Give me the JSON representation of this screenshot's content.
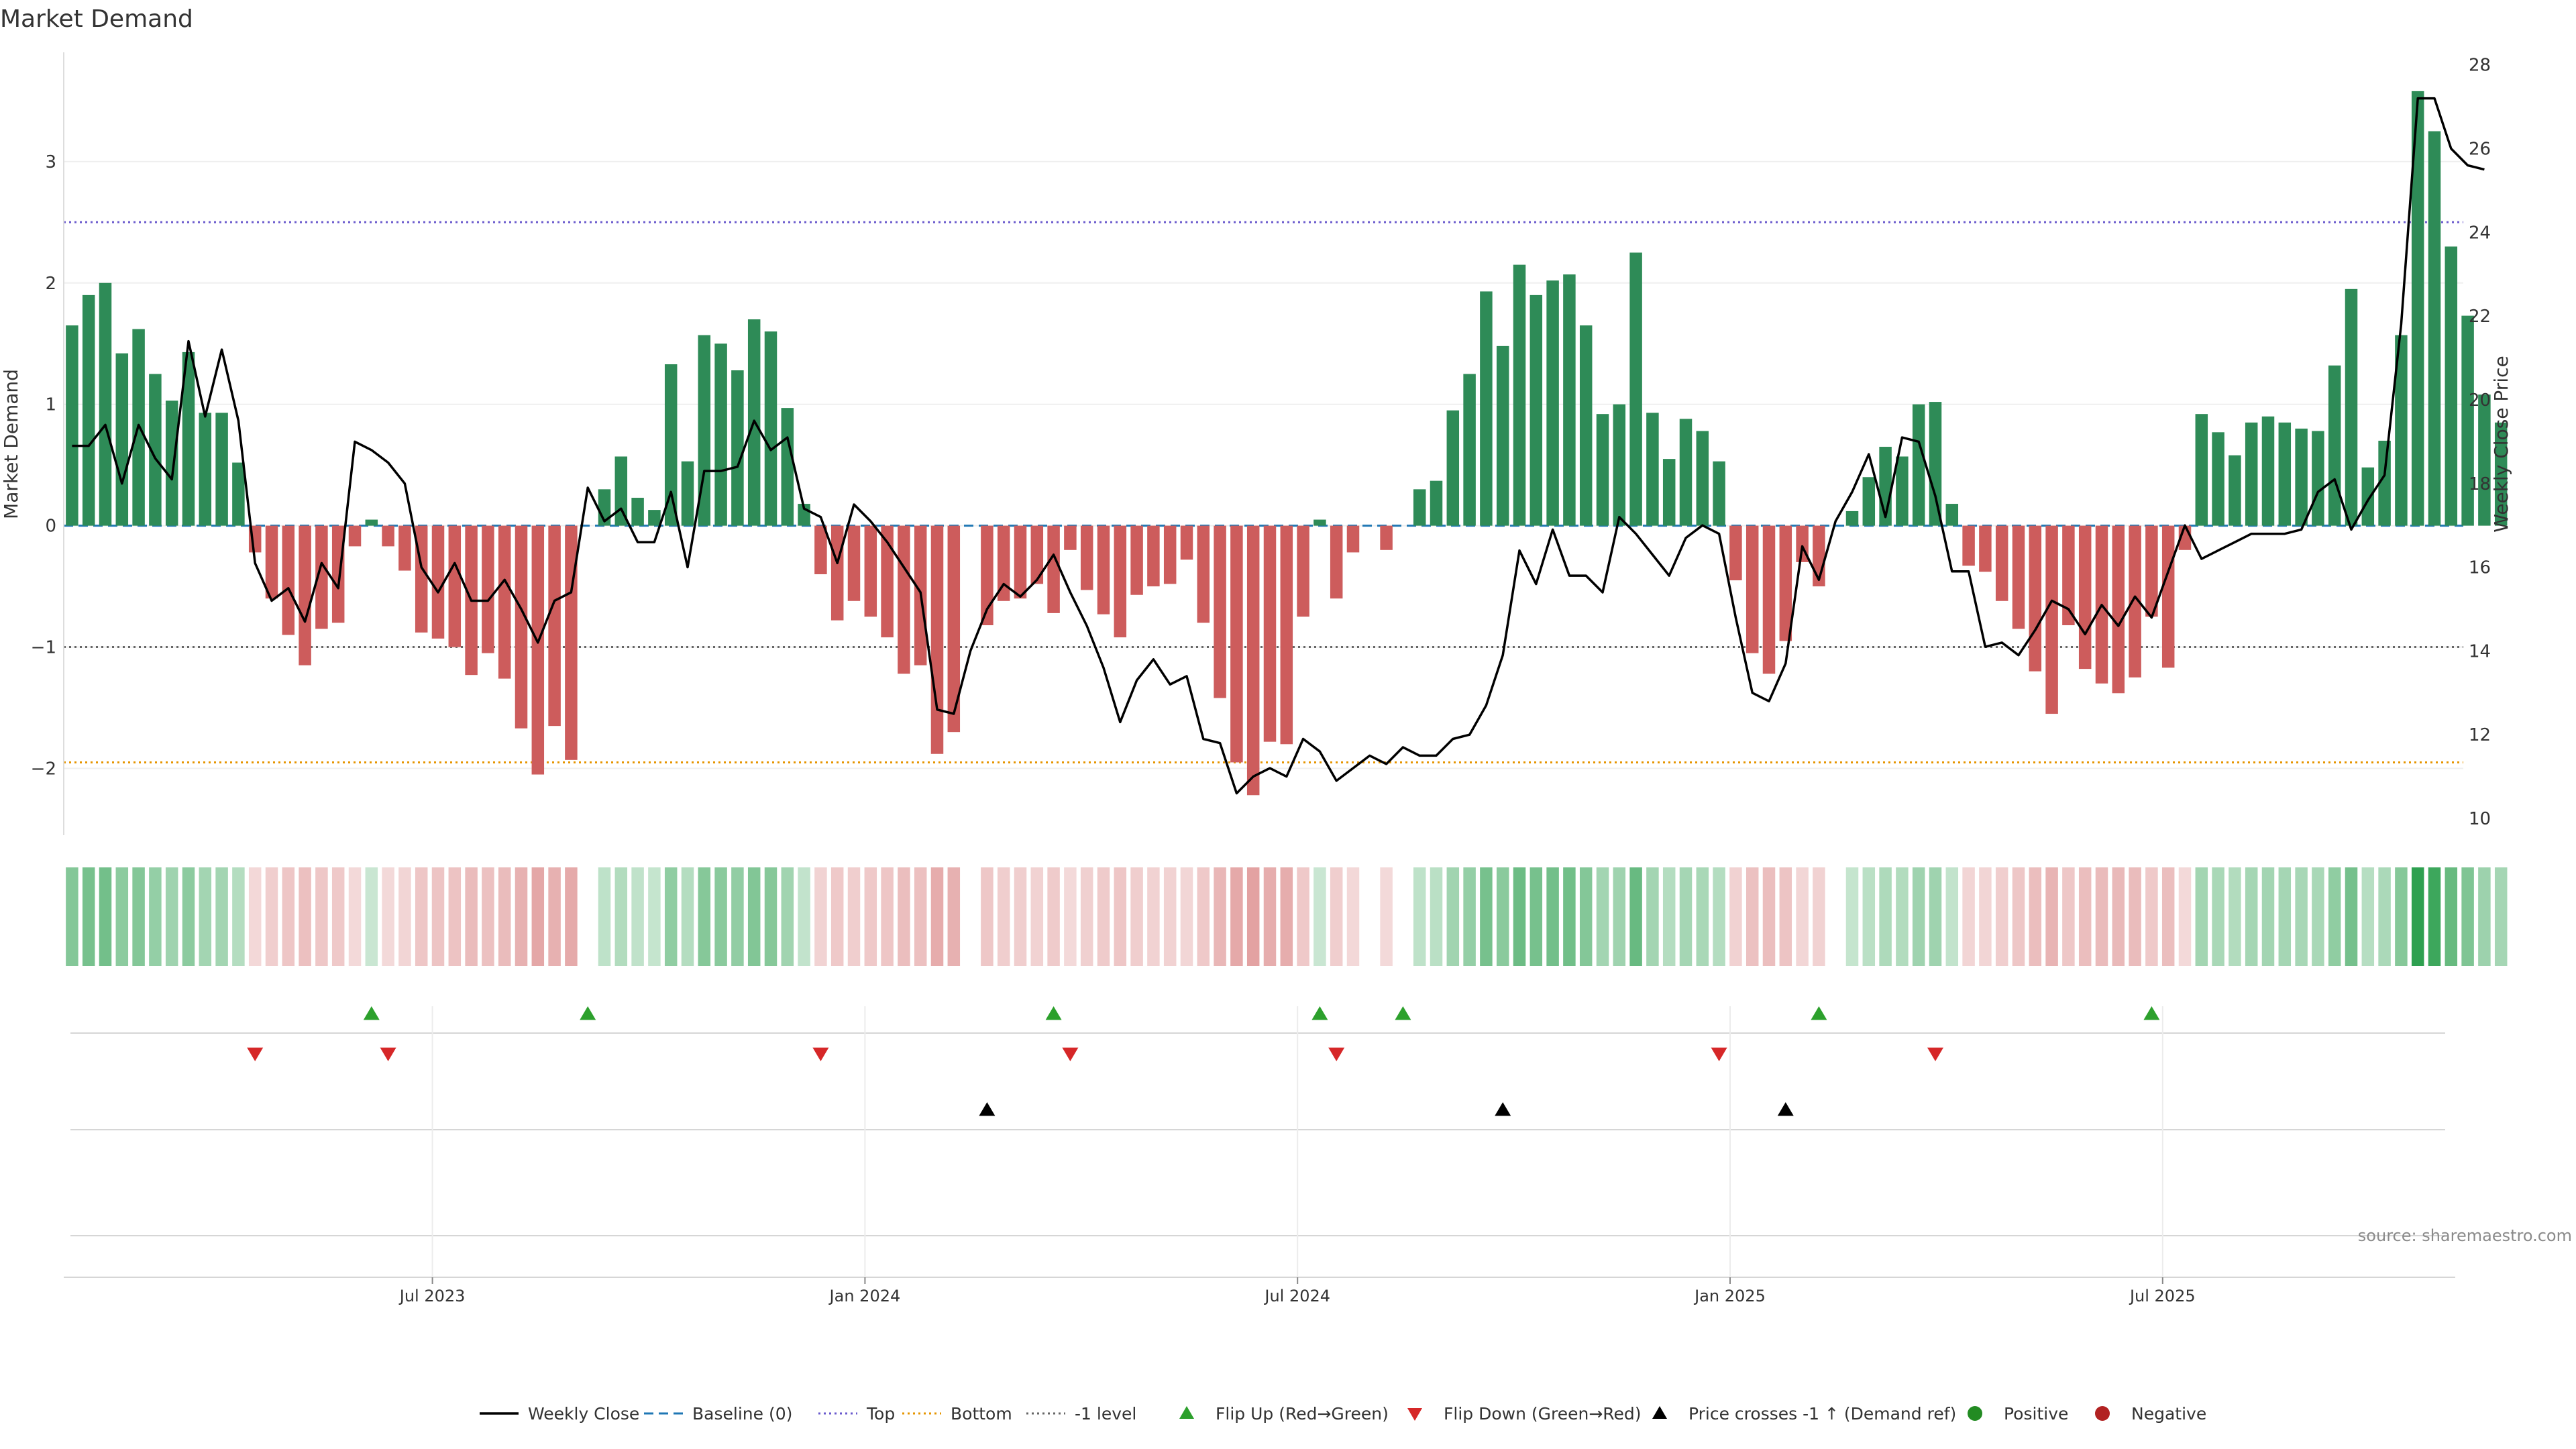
{
  "chart_data": {
    "type": "bar",
    "title": "Market Demand",
    "ylabel_left": "Market Demand",
    "ylabel_right": "Weekly Close Price",
    "source": "source: sharemaestro.com",
    "ylim_left": [
      -2.55,
      3.9
    ],
    "ylim_right": [
      9.6,
      28.3
    ],
    "left_ticks": [
      {
        "v": 3,
        "label": "3"
      },
      {
        "v": 2,
        "label": "2"
      },
      {
        "v": 1,
        "label": "1"
      },
      {
        "v": 0,
        "label": "0"
      },
      {
        "v": -1,
        "label": "−1"
      },
      {
        "v": -2,
        "label": "−2"
      }
    ],
    "right_ticks": [
      {
        "v": 28,
        "label": "28"
      },
      {
        "v": 26,
        "label": "26"
      },
      {
        "v": 24,
        "label": "24"
      },
      {
        "v": 22,
        "label": "22"
      },
      {
        "v": 20,
        "label": "20"
      },
      {
        "v": 18,
        "label": "18"
      },
      {
        "v": 16,
        "label": "16"
      },
      {
        "v": 14,
        "label": "14"
      },
      {
        "v": 12,
        "label": "12"
      },
      {
        "v": 10,
        "label": "10"
      }
    ],
    "x_ticks": [
      {
        "week": 22,
        "label": "Jul 2023"
      },
      {
        "week": 48,
        "label": "Jan 2024"
      },
      {
        "week": 74,
        "label": "Jul 2024"
      },
      {
        "week": 100,
        "label": "Jan 2025"
      },
      {
        "week": 126,
        "label": "Jul 2025"
      }
    ],
    "reference_lines": {
      "top": 2.5,
      "bottom": -1.95,
      "minus_one": -1,
      "baseline": 0
    },
    "colors": {
      "positive": "#2e8b57",
      "negative": "#cd5c5c",
      "price": "#000000",
      "baseline": "#1f77b4",
      "top": "#6a5acd",
      "bottom": "#e69500",
      "minus_one": "#666666",
      "flip_up": "#2ca02c",
      "flip_down": "#d62728",
      "cross": "#000000",
      "legend_positive": "#228b22",
      "legend_negative": "#b22222"
    },
    "demand": [
      1.65,
      1.9,
      2.0,
      1.42,
      1.62,
      1.25,
      1.03,
      1.43,
      0.93,
      0.93,
      0.52,
      -0.22,
      -0.6,
      -0.9,
      -1.15,
      -0.85,
      -0.8,
      -0.17,
      0.05,
      -0.17,
      -0.37,
      -0.88,
      -0.93,
      -1.0,
      -1.23,
      -1.05,
      -1.26,
      -1.67,
      -2.05,
      -1.65,
      -1.93,
      0,
      0.3,
      0.57,
      0.23,
      0.13,
      1.33,
      0.53,
      1.57,
      1.5,
      1.28,
      1.7,
      1.6,
      0.97,
      0.18,
      -0.4,
      -0.78,
      -0.62,
      -0.75,
      -0.92,
      -1.22,
      -1.15,
      -1.88,
      -1.7,
      0,
      -0.82,
      -0.62,
      -0.6,
      -0.48,
      -0.72,
      -0.2,
      -0.53,
      -0.73,
      -0.92,
      -0.57,
      -0.5,
      -0.48,
      -0.28,
      -0.8,
      -1.42,
      -1.95,
      -2.22,
      -1.78,
      -1.8,
      -0.75,
      0.05,
      -0.6,
      -0.22,
      0,
      -0.2,
      0,
      0.3,
      0.37,
      0.95,
      1.25,
      1.93,
      1.48,
      2.15,
      1.9,
      2.02,
      2.07,
      1.65,
      0.92,
      1.0,
      2.25,
      0.93,
      0.55,
      0.88,
      0.78,
      0.53,
      -0.45,
      -1.05,
      -1.22,
      -0.95,
      -0.3,
      -0.5,
      0,
      0.12,
      0.4,
      0.65,
      0.57,
      1.0,
      1.02,
      0.18,
      -0.33,
      -0.38,
      -0.62,
      -0.85,
      -1.2,
      -1.55,
      -0.82,
      -1.18,
      -1.3,
      -1.38,
      -1.25,
      -0.75,
      -1.17,
      -0.2,
      0.92,
      0.77,
      0.58,
      0.85,
      0.9,
      0.85,
      0.8,
      0.78,
      1.32,
      1.95,
      0.48,
      0.7,
      1.57,
      3.58,
      3.25,
      2.3,
      1.73,
      1.08,
      0.85
    ],
    "price": [
      18.9,
      18.9,
      19.4,
      18.0,
      19.4,
      18.6,
      18.1,
      21.4,
      19.6,
      21.2,
      19.5,
      16.1,
      15.2,
      15.5,
      14.7,
      16.1,
      15.5,
      19.0,
      18.8,
      18.5,
      18.0,
      16.0,
      15.4,
      16.1,
      15.2,
      15.2,
      15.7,
      15.0,
      14.2,
      15.2,
      15.4,
      17.9,
      17.1,
      17.4,
      16.6,
      16.6,
      17.8,
      16.0,
      18.3,
      18.3,
      18.4,
      19.5,
      18.8,
      19.1,
      17.4,
      17.2,
      16.1,
      17.5,
      17.1,
      16.6,
      16.0,
      15.4,
      12.6,
      12.5,
      14.0,
      15.0,
      15.6,
      15.3,
      15.7,
      16.3,
      15.4,
      14.6,
      13.6,
      12.3,
      13.3,
      13.8,
      13.2,
      13.4,
      11.9,
      11.8,
      10.6,
      11.0,
      11.2,
      11.0,
      11.9,
      11.6,
      10.9,
      11.2,
      11.5,
      11.3,
      11.7,
      11.5,
      11.5,
      11.9,
      12.0,
      12.7,
      13.9,
      16.4,
      15.6,
      16.9,
      15.8,
      15.8,
      15.4,
      17.2,
      16.8,
      16.3,
      15.8,
      16.7,
      17.0,
      16.8,
      14.8,
      13.0,
      12.8,
      13.7,
      16.5,
      15.7,
      17.1,
      17.8,
      18.7,
      17.2,
      19.1,
      19.0,
      17.7,
      15.9,
      15.9,
      14.1,
      14.2,
      13.9,
      14.5,
      15.2,
      15.0,
      14.4,
      15.1,
      14.6,
      15.3,
      14.8,
      15.9,
      17.0,
      16.2,
      16.4,
      16.6,
      16.8,
      16.8,
      16.8,
      16.9,
      17.8,
      18.1,
      16.9,
      17.6,
      18.2,
      21.8,
      27.2,
      27.2,
      26.0,
      25.6,
      25.5
    ],
    "flip_up_weeks": [
      18,
      31,
      59,
      75,
      80,
      105,
      125
    ],
    "flip_down_weeks": [
      11,
      19,
      45,
      60,
      76,
      99,
      112
    ],
    "price_cross_weeks": [
      55,
      86,
      103
    ],
    "legend": [
      {
        "key": "weekly_close",
        "label": "Weekly Close"
      },
      {
        "key": "baseline",
        "label": "Baseline (0)"
      },
      {
        "key": "top",
        "label": "Top"
      },
      {
        "key": "bottom",
        "label": "Bottom"
      },
      {
        "key": "minus_one",
        "label": "-1 level"
      },
      {
        "key": "flip_up",
        "label": "Flip Up (Red→Green)"
      },
      {
        "key": "flip_down",
        "label": "Flip Down (Green→Red)"
      },
      {
        "key": "cross",
        "label": "Price crosses -1 ↑ (Demand ref)"
      },
      {
        "key": "positive",
        "label": "Positive"
      },
      {
        "key": "negative",
        "label": "Negative"
      }
    ]
  }
}
